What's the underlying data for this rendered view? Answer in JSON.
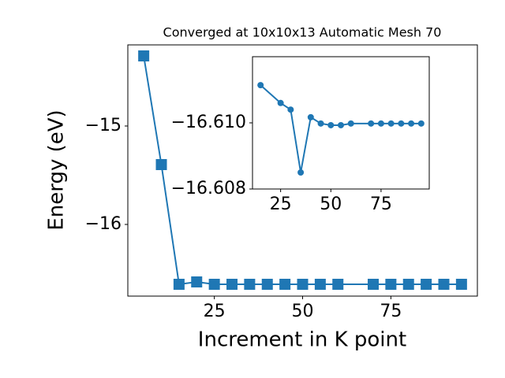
{
  "chart_data": [
    {
      "type": "line",
      "title": "Converged at 10x10x13 Automatic Mesh 70",
      "x_label": "Increment in K point",
      "y_label": "Energy (eV)",
      "x": [
        5,
        10,
        15,
        20,
        25,
        30,
        35,
        40,
        45,
        50,
        55,
        60,
        70,
        75,
        80,
        85,
        90,
        95
      ],
      "series": [
        {
          "color": "#1f77b4",
          "marker": "square",
          "values": [
            -14.288,
            -15.392,
            -16.608,
            -16.584,
            -16.608,
            -16.608,
            -16.608,
            -16.608,
            -16.608,
            -16.608,
            -16.608,
            -16.608,
            -16.608,
            -16.608,
            -16.608,
            -16.608,
            -16.608,
            -16.608
          ]
        }
      ],
      "xlim": [
        0.5,
        99.5
      ],
      "ylim": [
        -16.728,
        -14.176
      ],
      "xticks": [
        25,
        50,
        75
      ],
      "yticks": [
        {
          "value": -15,
          "label": "−15"
        },
        {
          "value": -16,
          "label": "−16"
        }
      ]
    },
    {
      "type": "line",
      "x": [
        15,
        25,
        30,
        35,
        40,
        45,
        50,
        55,
        60,
        70,
        75,
        80,
        85,
        90,
        95
      ],
      "series": [
        {
          "color": "#1f77b4",
          "marker": "circle",
          "values": [
            -16.61114,
            -16.6106,
            -16.6104,
            -16.6085,
            -16.61017,
            -16.60998,
            -16.60993,
            -16.60993,
            -16.60998,
            -16.60998,
            -16.60998,
            -16.60998,
            -16.60998,
            -16.60998,
            -16.60998
          ]
        }
      ],
      "xlim": [
        11,
        99
      ],
      "ylim": [
        -16.608,
        -16.612
      ],
      "xticks": [
        25,
        50,
        75
      ],
      "yticks": [
        {
          "value": -16.61,
          "label": "−16.610"
        },
        {
          "value": -16.608,
          "label": "−16.608"
        }
      ]
    }
  ]
}
